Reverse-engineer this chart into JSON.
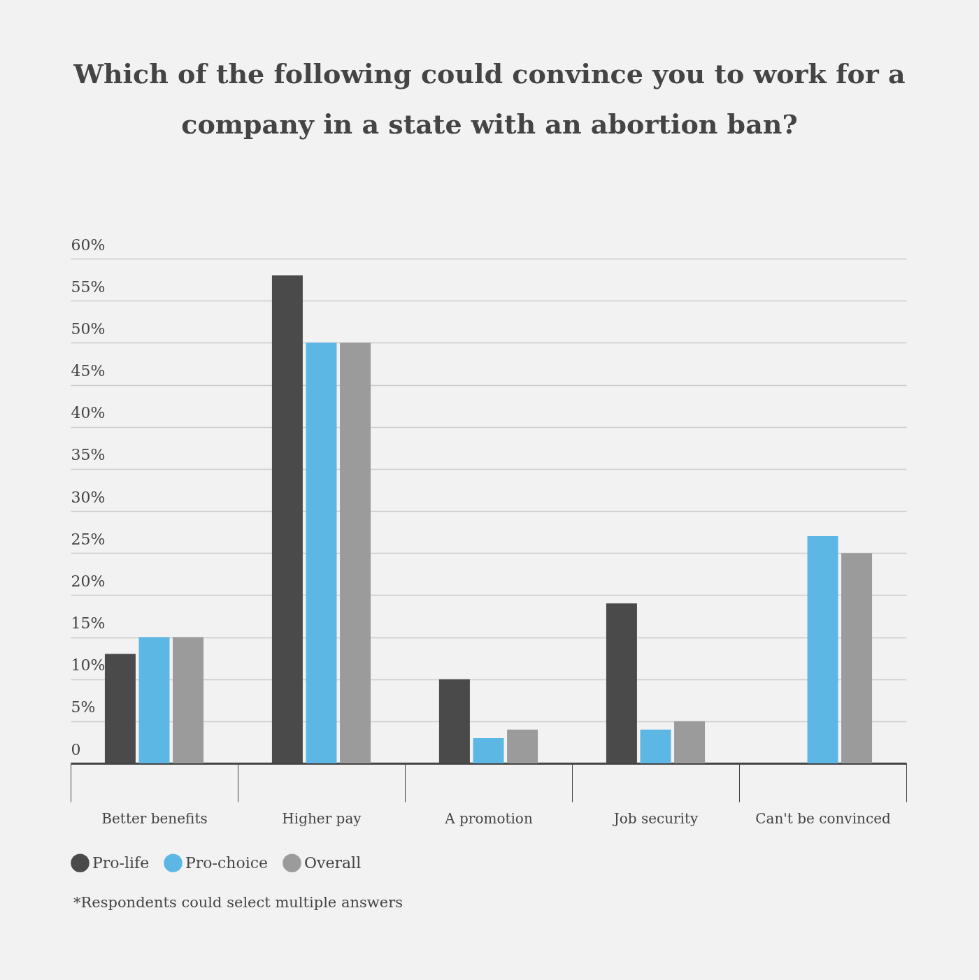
{
  "chart_data": {
    "type": "bar",
    "title": "Which of the following could convince you to work for a company in a state with an abortion ban?",
    "categories": [
      "Better benefits",
      "Higher pay",
      "A promotion",
      "Job security",
      "Can't be convinced"
    ],
    "series": [
      {
        "name": "Pro-life",
        "color": "#4a4a4a",
        "values": [
          13,
          58,
          10,
          19,
          0
        ]
      },
      {
        "name": "Pro-choice",
        "color": "#5db7e5",
        "values": [
          15,
          50,
          3,
          4,
          27
        ]
      },
      {
        "name": "Overall",
        "color": "#9b9b9b",
        "values": [
          15,
          50,
          4,
          5,
          25
        ]
      }
    ],
    "ylim": [
      0,
      60
    ],
    "yticks": [
      {
        "value": 0,
        "label": "0"
      },
      {
        "value": 5,
        "label": "5%"
      },
      {
        "value": 10,
        "label": "10%"
      },
      {
        "value": 15,
        "label": "15%"
      },
      {
        "value": 20,
        "label": "20%"
      },
      {
        "value": 25,
        "label": "25%"
      },
      {
        "value": 30,
        "label": "30%"
      },
      {
        "value": 35,
        "label": "35%"
      },
      {
        "value": 40,
        "label": "40%"
      },
      {
        "value": 45,
        "label": "45%"
      },
      {
        "value": 50,
        "label": "50%"
      },
      {
        "value": 55,
        "label": "55%"
      },
      {
        "value": 60,
        "label": "60%"
      }
    ],
    "grid": "y",
    "legend": "bottom",
    "annotations": [
      "*Respondents could select multiple answers"
    ]
  }
}
